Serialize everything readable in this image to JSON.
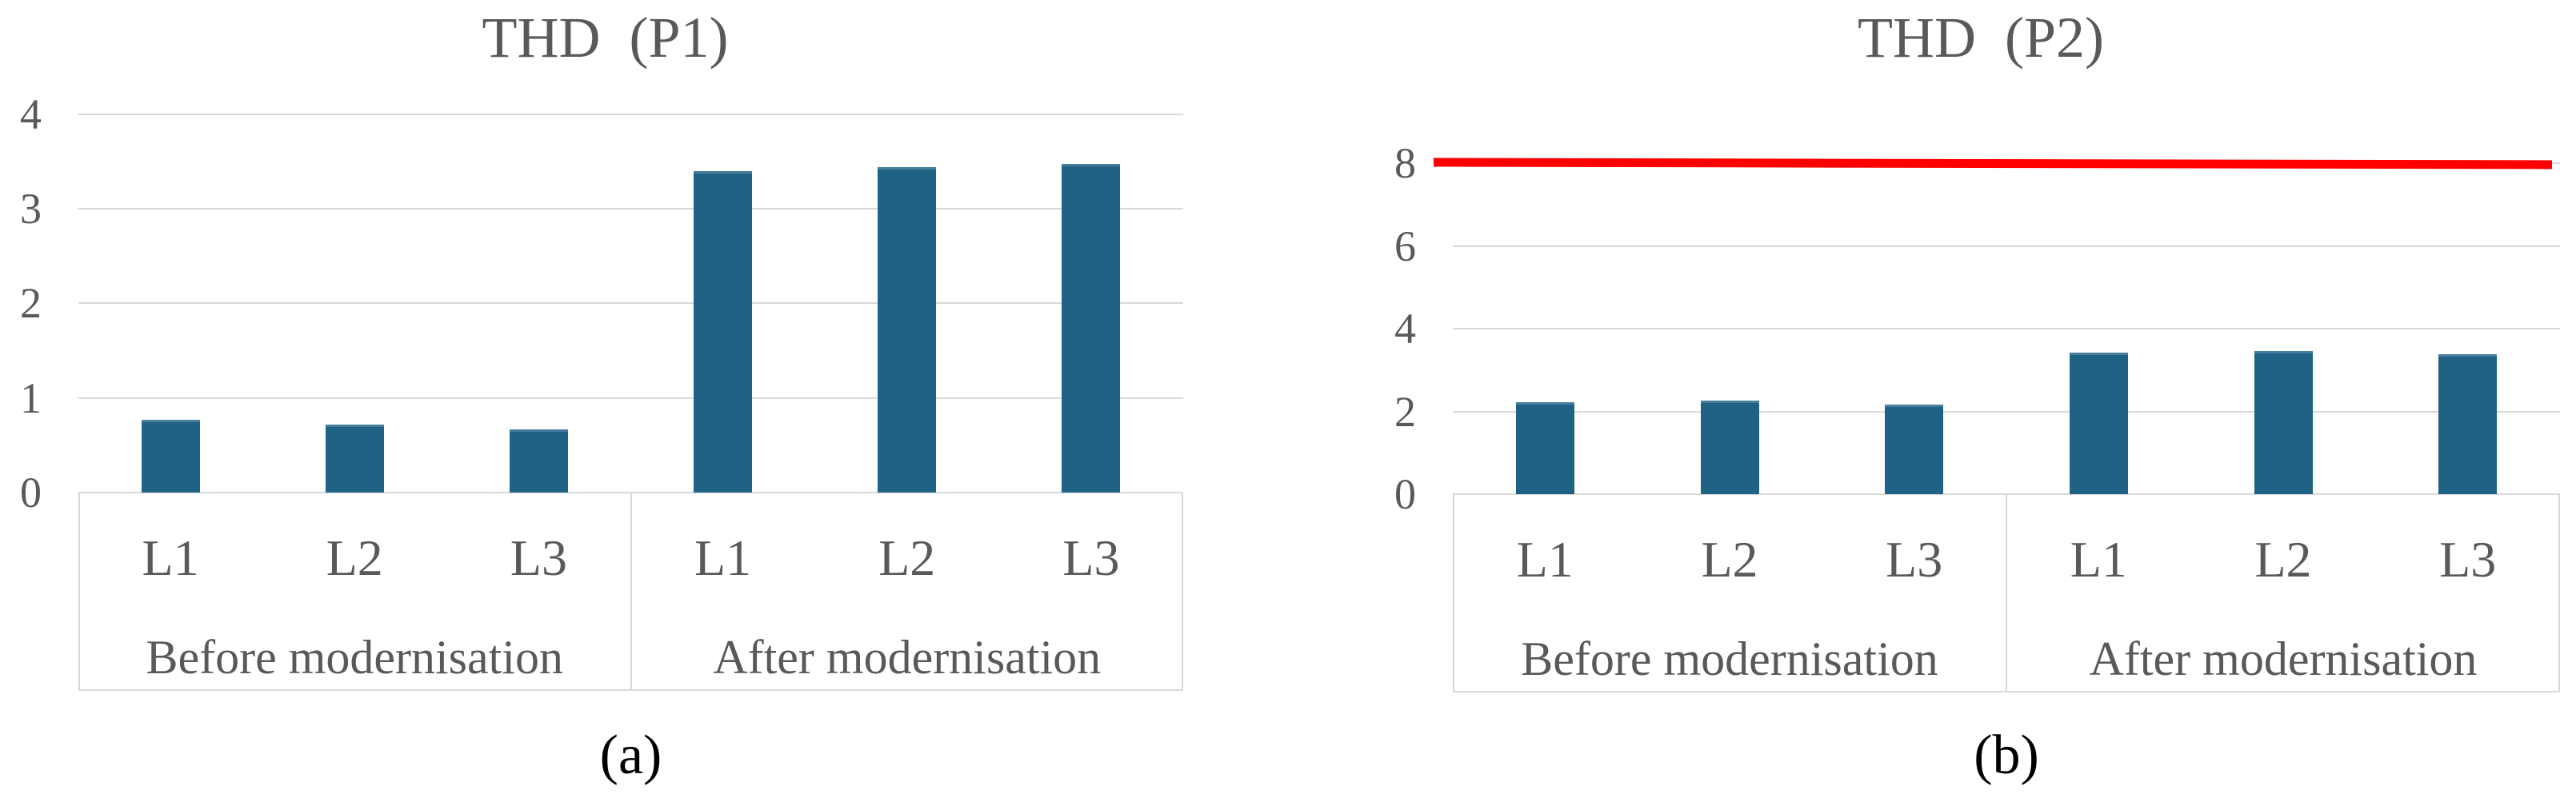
{
  "figure": {
    "background": "#FFFFFF",
    "text_color": "#595959",
    "grid_color": "#D9D9D9",
    "caption_color": "#000000"
  },
  "chart_data": [
    {
      "type": "bar",
      "title": "THD  (P1)",
      "caption": "(a)",
      "bar_color": "#1F6286",
      "grid": "horizontal",
      "legend": "none",
      "xlabel": "",
      "ylabel": "",
      "ylim": [
        0,
        4
      ],
      "yticks": [
        0,
        1,
        2,
        3,
        4
      ],
      "group_labels": [
        "Before modernisation",
        "After modernisation"
      ],
      "categories": [
        "L1",
        "L2",
        "L3"
      ],
      "series": [
        {
          "name": "Before modernisation",
          "values": [
            0.77,
            0.72,
            0.67
          ]
        },
        {
          "name": "After modernisation",
          "values": [
            3.4,
            3.44,
            3.47
          ]
        }
      ]
    },
    {
      "type": "bar",
      "title": "THD  (P2)",
      "caption": "(b)",
      "bar_color": "#1F6286",
      "grid": "horizontal",
      "legend": "none",
      "xlabel": "",
      "ylabel": "",
      "ylim": [
        0,
        8
      ],
      "yticks": [
        0,
        2,
        4,
        6,
        8
      ],
      "group_labels": [
        "Before modernisation",
        "After modernisation"
      ],
      "categories": [
        "L1",
        "L2",
        "L3"
      ],
      "series": [
        {
          "name": "Before modernisation",
          "values": [
            2.22,
            2.27,
            2.17
          ]
        },
        {
          "name": "After modernisation",
          "values": [
            3.42,
            3.46,
            3.39
          ]
        }
      ],
      "limit_line": {
        "value": 8,
        "color": "#FF0000"
      }
    }
  ]
}
